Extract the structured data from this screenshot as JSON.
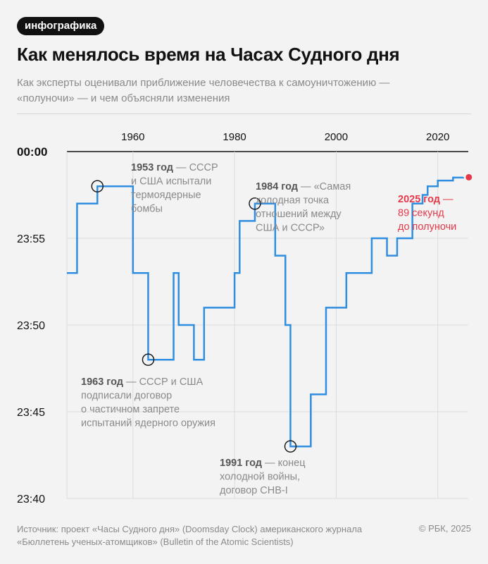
{
  "header": {
    "tag": "инфографика",
    "title": "Как менялось время на Часах Судного дня",
    "subtitle_lines": [
      "Как эксперты оценивали приближение человечества к самоуничтожению —",
      "«полуночи» — и чем объясняли изменения"
    ]
  },
  "footer": {
    "source_lines": [
      "Источник: проект «Часы Судного дня» (Doomsday Clock) американского журнала",
      "«Бюллетень ученых-атомщиков» (Bulletin of the Atomic Scientists)"
    ],
    "copyright": "© РБК, 2025"
  },
  "colors": {
    "line": "#2f8ee0",
    "highlight": "#e5394a",
    "grid": "#dcdcdc",
    "annotation_gray": "#8a8a8a"
  },
  "chart_data": {
    "type": "line",
    "step": true,
    "x_ticks": [
      1960,
      1980,
      2000,
      2020
    ],
    "y_ticks": [
      "00:00",
      "23:55",
      "23:50",
      "23:45",
      "23:40"
    ],
    "y_tick_minutes_before_midnight": [
      0,
      5,
      10,
      15,
      20
    ],
    "xlim": [
      1947,
      2026
    ],
    "ylim_minutes_before_midnight": [
      20,
      0
    ],
    "grid": true,
    "series": [
      {
        "points": [
          [
            1947,
            7
          ],
          [
            1949,
            3
          ],
          [
            1953,
            2
          ],
          [
            1960,
            7
          ],
          [
            1963,
            12
          ],
          [
            1968,
            7
          ],
          [
            1969,
            10
          ],
          [
            1972,
            12
          ],
          [
            1974,
            9
          ],
          [
            1980,
            7
          ],
          [
            1981,
            4
          ],
          [
            1984,
            3
          ],
          [
            1988,
            6
          ],
          [
            1990,
            10
          ],
          [
            1991,
            17
          ],
          [
            1995,
            14
          ],
          [
            1998,
            9
          ],
          [
            2002,
            7
          ],
          [
            2007,
            5
          ],
          [
            2010,
            6
          ],
          [
            2012,
            5
          ],
          [
            2015,
            3
          ],
          [
            2017,
            2.5
          ],
          [
            2018,
            2
          ],
          [
            2020,
            1.67
          ],
          [
            2023,
            1.5
          ],
          [
            2025,
            1.48
          ]
        ],
        "end_year": 2026
      }
    ],
    "markers": [
      {
        "year": 1953,
        "minutes": 2
      },
      {
        "year": 1963,
        "minutes": 12
      },
      {
        "year": 1984,
        "minutes": 3
      },
      {
        "year": 1991,
        "minutes": 17
      }
    ],
    "highlight_point": {
      "year": 2025,
      "minutes": 1.48
    },
    "annotations": [
      {
        "id": "a1953",
        "bold": "1953 год",
        "lines": [
          "1953 год — СССР",
          "и США испытали",
          "термоядерные",
          "бомбы"
        ]
      },
      {
        "id": "a1984",
        "bold": "1984 год",
        "lines": [
          "1984 год — «Самая",
          "холодная точка",
          "отношений между",
          "США и СССР»"
        ]
      },
      {
        "id": "a1963",
        "bold": "1963 год",
        "lines": [
          "1963 год — СССР и США",
          "подписали договор",
          "о частичном запрете",
          "испытаний ядерного оружия"
        ]
      },
      {
        "id": "a1991",
        "bold": "1991 год",
        "lines": [
          "1991 год — конец",
          "холодной войны,",
          "договор СНВ-I"
        ]
      },
      {
        "id": "a2025",
        "bold": "2025 год",
        "lines": [
          "2025 год —",
          "89 секунд",
          "до полуночи"
        ],
        "highlight": true
      }
    ]
  }
}
